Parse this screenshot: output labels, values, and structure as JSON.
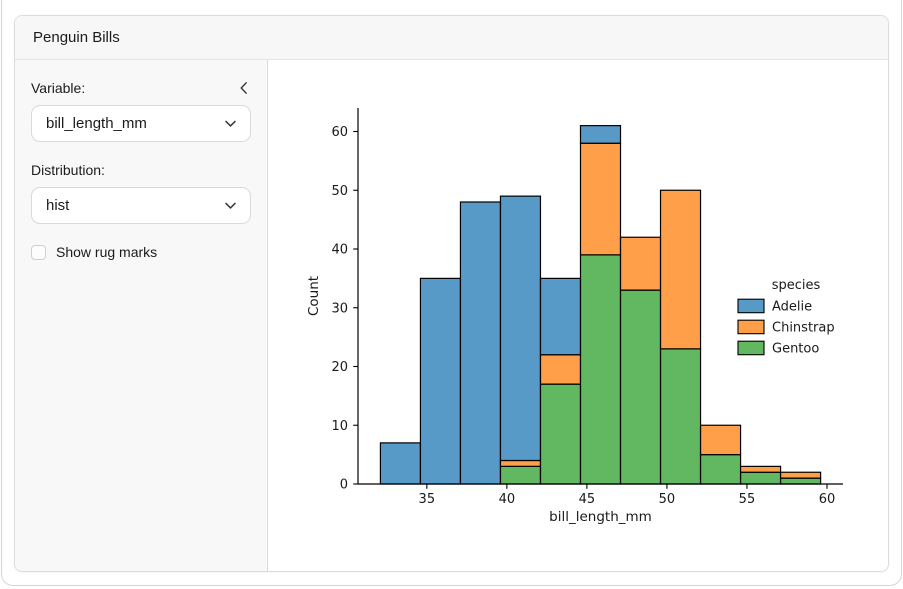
{
  "card": {
    "title": "Penguin Bills"
  },
  "sidebar": {
    "variable_label": "Variable:",
    "variable_value": "bill_length_mm",
    "distribution_label": "Distribution:",
    "distribution_value": "hist",
    "rug_checkbox_label": "Show rug marks",
    "rug_checked": false
  },
  "icons": {
    "collapse": "chevron-left-icon",
    "select_arrow": "chevron-down-icon"
  },
  "chart_data": {
    "type": "bar",
    "subtype": "stacked-histogram",
    "title": "",
    "xlabel": "bill_length_mm",
    "ylabel": "Count",
    "bin_edges": [
      32.1,
      34.6,
      37.1,
      39.6,
      42.1,
      44.6,
      47.1,
      49.6,
      52.1,
      54.6,
      57.1,
      59.6
    ],
    "series": [
      {
        "name": "Gentoo",
        "color": "#2ca02c",
        "values": [
          0,
          0,
          0,
          3,
          17,
          39,
          33,
          23,
          5,
          2,
          1
        ]
      },
      {
        "name": "Chinstrap",
        "color": "#ff7f0e",
        "values": [
          0,
          0,
          0,
          1,
          5,
          19,
          9,
          27,
          5,
          1,
          1
        ]
      },
      {
        "name": "Adelie",
        "color": "#1f77b4",
        "values": [
          7,
          35,
          48,
          45,
          13,
          3,
          0,
          0,
          0,
          0,
          0
        ]
      }
    ],
    "bar_totals": [
      7,
      35,
      48,
      49,
      35,
      61,
      42,
      50,
      10,
      3,
      2
    ],
    "x_ticks": [
      35,
      40,
      45,
      50,
      55,
      60
    ],
    "y_ticks": [
      0,
      10,
      20,
      30,
      40,
      50,
      60
    ],
    "xlim": [
      30.7,
      61.0
    ],
    "ylim": [
      0,
      64
    ],
    "grid": false,
    "fill_opacity": 0.75,
    "edge_color": "#000000",
    "legend": {
      "title": "species",
      "position": "right",
      "entries": [
        {
          "label": "Adelie",
          "color": "#1f77b4"
        },
        {
          "label": "Chinstrap",
          "color": "#ff7f0e"
        },
        {
          "label": "Gentoo",
          "color": "#2ca02c"
        }
      ]
    }
  }
}
